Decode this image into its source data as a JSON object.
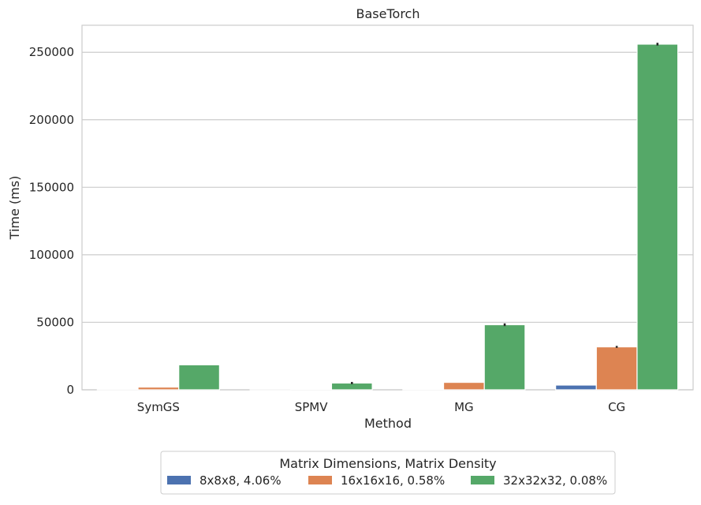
{
  "chart_data": {
    "type": "bar",
    "title": "BaseTorch",
    "xlabel": "Method",
    "ylabel": "Time (ms)",
    "categories": [
      "SymGS",
      "SPMV",
      "MG",
      "CG"
    ],
    "ylim": [
      0,
      270000
    ],
    "yticks": [
      0,
      50000,
      100000,
      150000,
      200000,
      250000
    ],
    "ytick_labels": [
      "0",
      "50000",
      "100000",
      "150000",
      "200000",
      "250000"
    ],
    "grid": "horizontal",
    "legend_title": "Matrix Dimensions, Matrix Density",
    "legend_position": "below",
    "series": [
      {
        "name": "8x8x8, 4.06%",
        "color": "#4c72b0",
        "values": [
          150,
          50,
          400,
          3500
        ],
        "errors": [
          0,
          0,
          0,
          0
        ]
      },
      {
        "name": "16x16x16, 0.58%",
        "color": "#dd8452",
        "values": [
          2000,
          500,
          5500,
          31800
        ],
        "errors": [
          0,
          0,
          0,
          700
        ]
      },
      {
        "name": "32x32x32, 0.08%",
        "color": "#55a868",
        "values": [
          18500,
          5000,
          48200,
          256000
        ],
        "errors": [
          0,
          800,
          1000,
          1000
        ]
      }
    ]
  }
}
